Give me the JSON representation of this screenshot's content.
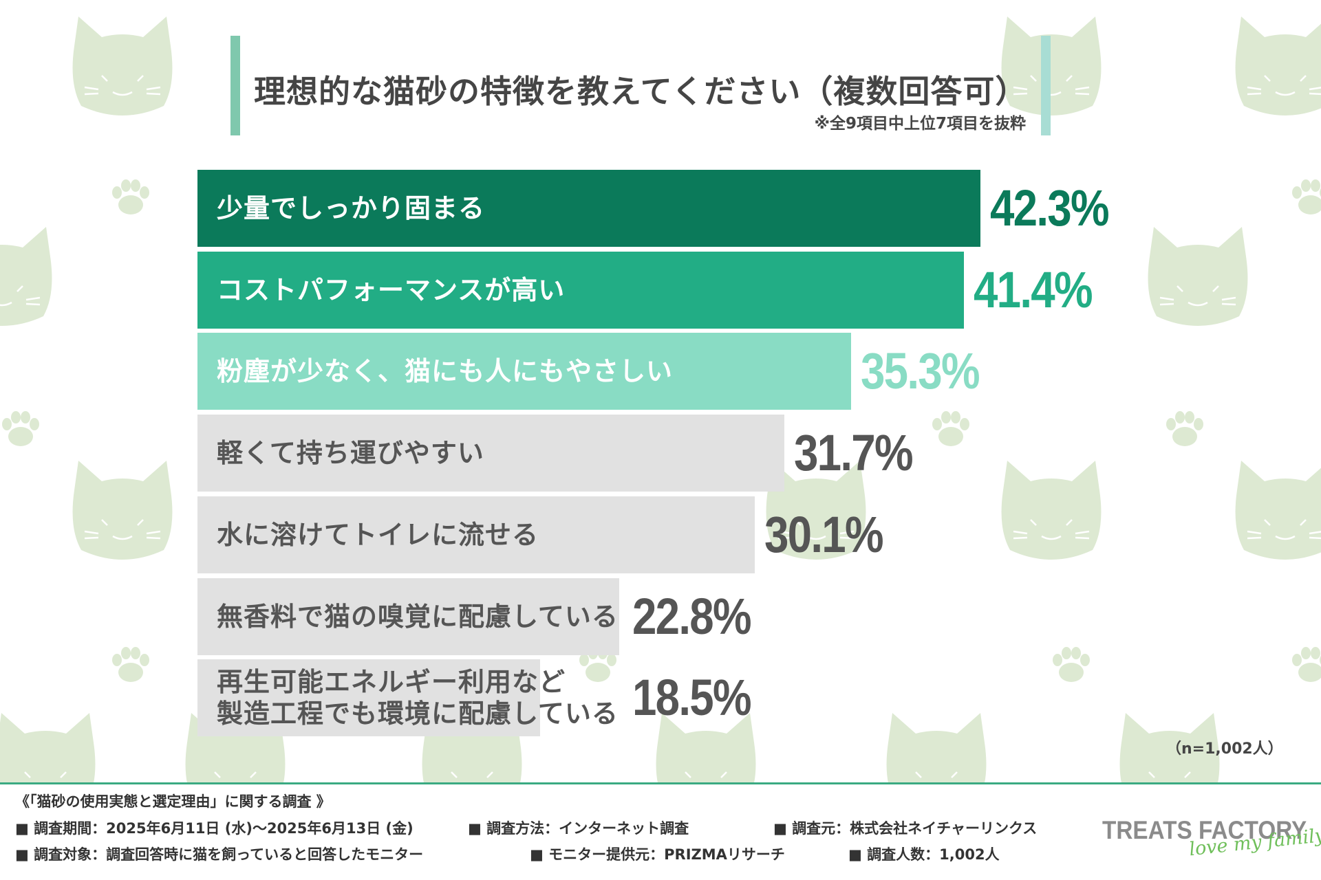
{
  "title": "理想的な猫砂の特徴を教えてください（複数回答可）",
  "note": "※全9項目中上位7項目を抜粋",
  "sample_note": "（n=1,002人）",
  "colors": {
    "top1": "#0b7a5a",
    "top2": "#22ad85",
    "top3": "#89dcc4",
    "other": "#e1e1e1",
    "other_text": "#555555"
  },
  "chart_data": {
    "type": "bar",
    "orientation": "horizontal",
    "title": "理想的な猫砂の特徴を教えてください（複数回答可）",
    "unit": "%",
    "categories": [
      "少量でしっかり固まる",
      "コストパフォーマンスが高い",
      "粉塵が少なく、猫にも人にもやさしい",
      "軽くて持ち運びやすい",
      "水に溶けてトイレに流せる",
      "無香料で猫の嗅覚に配慮している",
      "再生可能エネルギー利用など\n製造工程でも環境に配慮している"
    ],
    "values": [
      42.3,
      41.4,
      35.3,
      31.7,
      30.1,
      22.8,
      18.5
    ],
    "value_labels": [
      "42.3%",
      "41.4%",
      "35.3%",
      "31.7%",
      "30.1%",
      "22.8%",
      "18.5%"
    ],
    "xlim": [
      0,
      42.3
    ]
  },
  "footer": {
    "survey_title": "《「猫砂の使用実態と選定理由」に関する調査 》",
    "period": "■ 調査期間：2025年6月11日 (水)〜2025年6月13日 (金)",
    "method": "■ 調査方法：インターネット調査",
    "source": "■ 調査元：株式会社ネイチャーリンクス",
    "target": "■ 調査対象：調査回答時に猫を飼っていると回答したモニター",
    "provider": "■ モニター提供元：PRIZMAリサーチ",
    "count": "■ 調査人数：1,002人"
  },
  "logo": {
    "main": "TREATS FACTORY",
    "sub": "love my family"
  }
}
